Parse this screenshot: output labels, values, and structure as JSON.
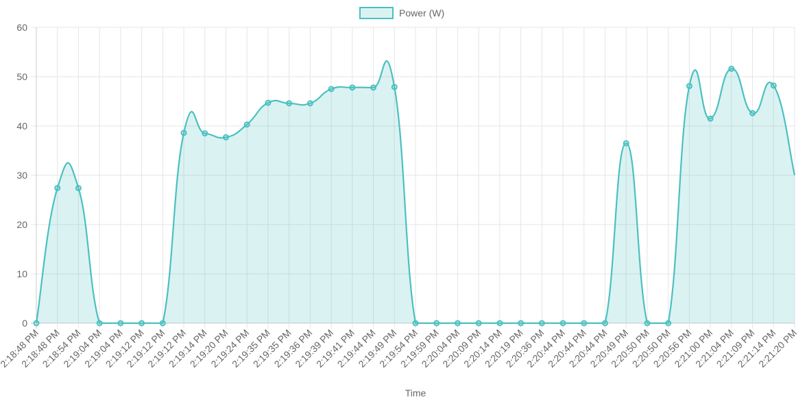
{
  "chart_data": {
    "type": "area",
    "title": "",
    "xlabel": "Time",
    "ylabel": "",
    "ylim": [
      0,
      60
    ],
    "yticks": [
      0,
      10,
      20,
      30,
      40,
      50,
      60
    ],
    "grid": true,
    "legend_position": "top-center",
    "categories": [
      "2:18:48 PM",
      "2:18:48 PM",
      "2:18:54 PM",
      "2:19:04 PM",
      "2:19:04 PM",
      "2:19:12 PM",
      "2:19:12 PM",
      "2:19:12 PM",
      "2:19:14 PM",
      "2:19:20 PM",
      "2:19:24 PM",
      "2:19:35 PM",
      "2:19:35 PM",
      "2:19:36 PM",
      "2:19:39 PM",
      "2:19:41 PM",
      "2:19:44 PM",
      "2:19:49 PM",
      "2:19:54 PM",
      "2:19:59 PM",
      "2:20:04 PM",
      "2:20:09 PM",
      "2:20:14 PM",
      "2:20:19 PM",
      "2:20:36 PM",
      "2:20:44 PM",
      "2:20:44 PM",
      "2:20:44 PM",
      "2:20:49 PM",
      "2:20:50 PM",
      "2:20:50 PM",
      "2:20:56 PM",
      "2:21:00 PM",
      "2:21:04 PM",
      "2:21:09 PM",
      "2:21:14 PM",
      "2:21:20 PM"
    ],
    "series": [
      {
        "name": "Power (W)",
        "color": "#4bc0c0",
        "fill": "rgba(75,192,192,0.2)",
        "values": [
          0,
          27.4,
          27.4,
          0,
          0,
          0,
          0,
          38.6,
          38.5,
          37.7,
          40.3,
          44.7,
          44.6,
          44.6,
          47.5,
          47.8,
          47.8,
          47.9,
          0,
          0,
          0,
          0,
          0,
          0,
          0,
          0,
          0,
          0,
          36.5,
          0,
          0,
          48.1,
          41.5,
          51.6,
          42.6,
          48.2,
          30.0
        ]
      }
    ]
  }
}
